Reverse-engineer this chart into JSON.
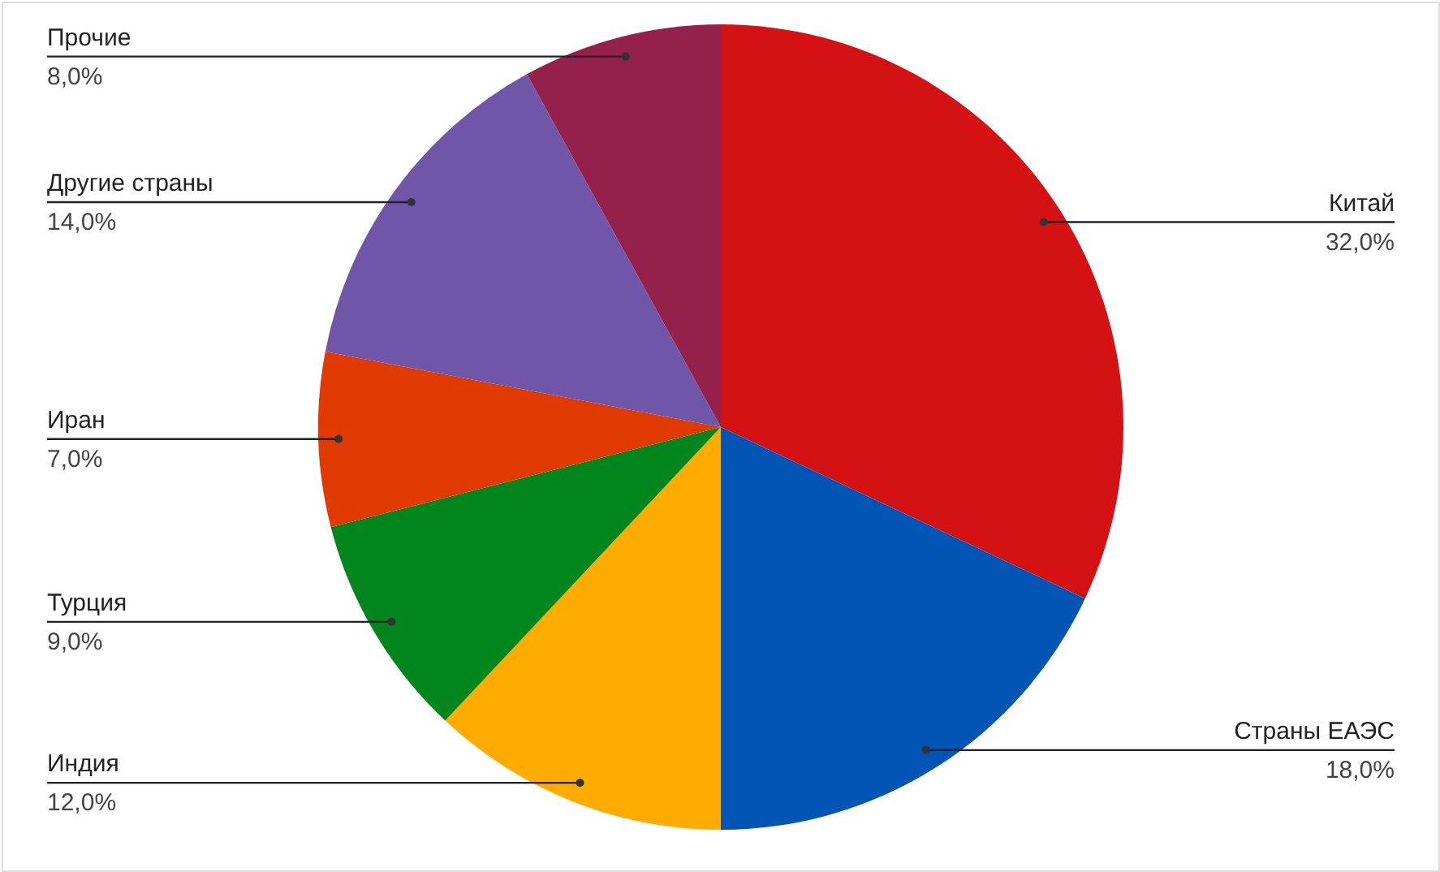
{
  "chart_data": {
    "type": "pie",
    "categories": [
      "Китай",
      "Страны ЕАЭС",
      "Индия",
      "Турция",
      "Иран",
      "Другие страны",
      "Прочие"
    ],
    "values": [
      32,
      18,
      12,
      9,
      7,
      14,
      8
    ],
    "colors": [
      "#d51213",
      "#0255b5",
      "#ffab00",
      "#00861d",
      "#e03a00",
      "#6f56a8",
      "#95204c"
    ],
    "value_labels": [
      "32,0%",
      "18,0%",
      "12,0%",
      "9,0%",
      "7,0%",
      "14,0%",
      "8,0%"
    ]
  }
}
